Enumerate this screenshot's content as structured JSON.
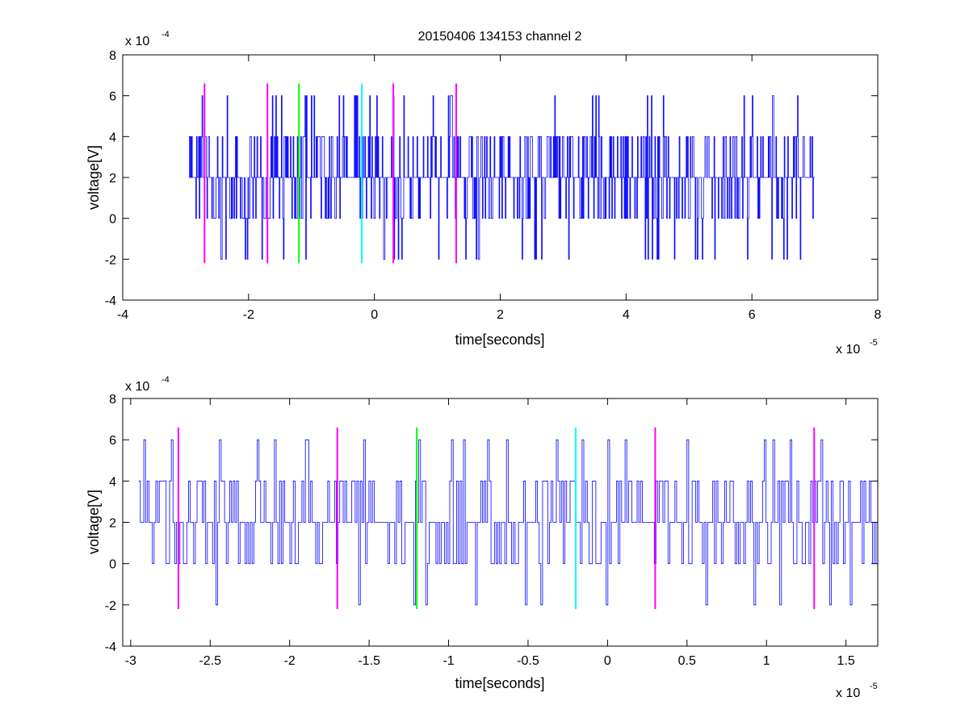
{
  "figure": {
    "title": "20150406 134153 channel 2"
  },
  "chart_data": [
    {
      "type": "line",
      "xlabel": "time[seconds]",
      "ylabel": "voltage[V]",
      "xlim": [
        -4e-05,
        8e-05
      ],
      "ylim": [
        -0.0004,
        0.0008
      ],
      "xticks": [
        -4,
        -2,
        0,
        2,
        4,
        6,
        8
      ],
      "xtick_labels": [
        "-4",
        "-2",
        "0",
        "2",
        "4",
        "6",
        "8"
      ],
      "yticks": [
        -4,
        -2,
        0,
        2,
        4,
        6,
        8
      ],
      "ytick_labels": [
        "-4",
        "-2",
        "0",
        "2",
        "4",
        "6",
        "8"
      ],
      "x_exponent_label": "x 10",
      "x_exponent": "-5",
      "y_exponent_label": "x 10",
      "y_exponent": "-4",
      "grid": false,
      "series": [
        {
          "color": "#0000ff",
          "x_range": [
            -2.95e-05,
            7e-05
          ],
          "sample_count": 900,
          "dominant_level": 0.0002,
          "levels": [
            -0.0002,
            0,
            0.0002,
            0.0004,
            0.0006
          ]
        }
      ],
      "markers": [
        {
          "x": -2.7e-05,
          "color": "#ff00ff",
          "ymin": -0.00022,
          "ymax": 0.00066
        },
        {
          "x": -1.7e-05,
          "color": "#ff00ff",
          "ymin": -0.00022,
          "ymax": 0.00066
        },
        {
          "x": -1.2e-05,
          "color": "#00ff00",
          "ymin": -0.00022,
          "ymax": 0.00066
        },
        {
          "x": -2e-06,
          "color": "#00ffff",
          "ymin": -0.00022,
          "ymax": 0.00066
        },
        {
          "x": 3e-06,
          "color": "#ff00ff",
          "ymin": -0.00022,
          "ymax": 0.00066
        },
        {
          "x": 1.3e-05,
          "color": "#ff00ff",
          "ymin": -0.00022,
          "ymax": 0.00066
        }
      ]
    },
    {
      "type": "line",
      "xlabel": "time[seconds]",
      "ylabel": "voltage[V]",
      "xlim": [
        -3.05e-05,
        1.7e-05
      ],
      "ylim": [
        -0.0004,
        0.0008
      ],
      "xticks": [
        -3,
        -2.5,
        -2,
        -1.5,
        -1,
        -0.5,
        0,
        0.5,
        1,
        1.5
      ],
      "xtick_labels": [
        "-3",
        "-2.5",
        "-2",
        "-1.5",
        "-1",
        "-0.5",
        "0",
        "0.5",
        "1",
        "1.5"
      ],
      "yticks": [
        -4,
        -2,
        0,
        2,
        4,
        6,
        8
      ],
      "ytick_labels": [
        "-4",
        "-2",
        "0",
        "2",
        "4",
        "6",
        "8"
      ],
      "x_exponent_label": "x 10",
      "x_exponent": "-5",
      "y_exponent_label": "x 10",
      "y_exponent": "-4",
      "grid": false,
      "series": [
        {
          "color": "#0000ff",
          "x_range": [
            -2.95e-05,
            1.7e-05
          ],
          "sample_count": 430,
          "dominant_level": 0.0002,
          "levels": [
            -0.0002,
            0,
            0.0002,
            0.0004,
            0.0006
          ]
        }
      ],
      "markers": [
        {
          "x": -2.7e-05,
          "color": "#ff00ff",
          "ymin": -0.00022,
          "ymax": 0.00066
        },
        {
          "x": -1.7e-05,
          "color": "#ff00ff",
          "ymin": -0.00022,
          "ymax": 0.00066
        },
        {
          "x": -1.2e-05,
          "color": "#00ff00",
          "ymin": -0.00022,
          "ymax": 0.00066
        },
        {
          "x": -2e-06,
          "color": "#00ffff",
          "ymin": -0.00022,
          "ymax": 0.00066
        },
        {
          "x": 3e-06,
          "color": "#ff00ff",
          "ymin": -0.00022,
          "ymax": 0.00066
        },
        {
          "x": 1.3e-05,
          "color": "#ff00ff",
          "ymin": -0.00022,
          "ymax": 0.00066
        }
      ]
    }
  ]
}
